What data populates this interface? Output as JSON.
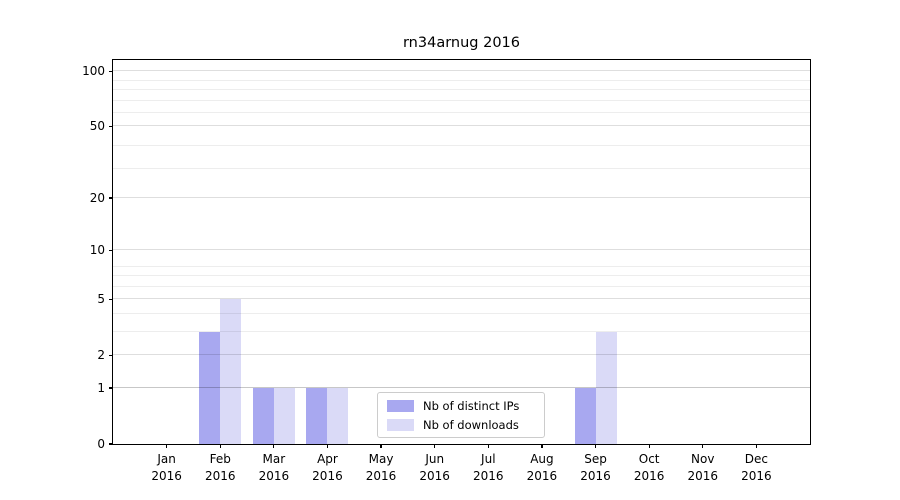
{
  "chart_data": {
    "type": "bar",
    "title": "rn34arnug 2016",
    "categories": [
      "Jan",
      "Feb",
      "Mar",
      "Apr",
      "May",
      "Jun",
      "Jul",
      "Aug",
      "Sep",
      "Oct",
      "Nov",
      "Dec"
    ],
    "category_sublabel": "2016",
    "series": [
      {
        "name": "Nb of distinct IPs",
        "color": "#a8a8f0",
        "values": [
          0,
          3,
          1,
          1,
          0,
          0,
          0,
          0,
          1,
          0,
          0,
          0
        ]
      },
      {
        "name": "Nb of downloads",
        "color": "#dadaf7",
        "values": [
          0,
          5,
          1,
          1,
          0,
          0,
          0,
          0,
          3,
          0,
          0,
          0
        ]
      }
    ],
    "xlabel": "",
    "ylabel": "",
    "y_axis": {
      "scale": "log10(value+1)",
      "ticks": [
        0,
        1,
        2,
        5,
        10,
        20,
        50,
        100
      ],
      "minor_gridline_values": [
        3,
        4,
        6,
        7,
        8,
        29,
        39,
        59,
        69,
        79,
        89
      ],
      "range": [
        0,
        115
      ]
    },
    "legend": {
      "position": "lower center",
      "entries": [
        "Nb of distinct IPs",
        "Nb of downloads"
      ]
    },
    "grid": true
  },
  "colors": {
    "frame": "#000000",
    "gridline_major": "rgba(0,0,0,0.22)",
    "gridline_labeled": "rgba(0,0,0,0.13)",
    "gridline_minor": "rgba(0,0,0,0.07)"
  }
}
